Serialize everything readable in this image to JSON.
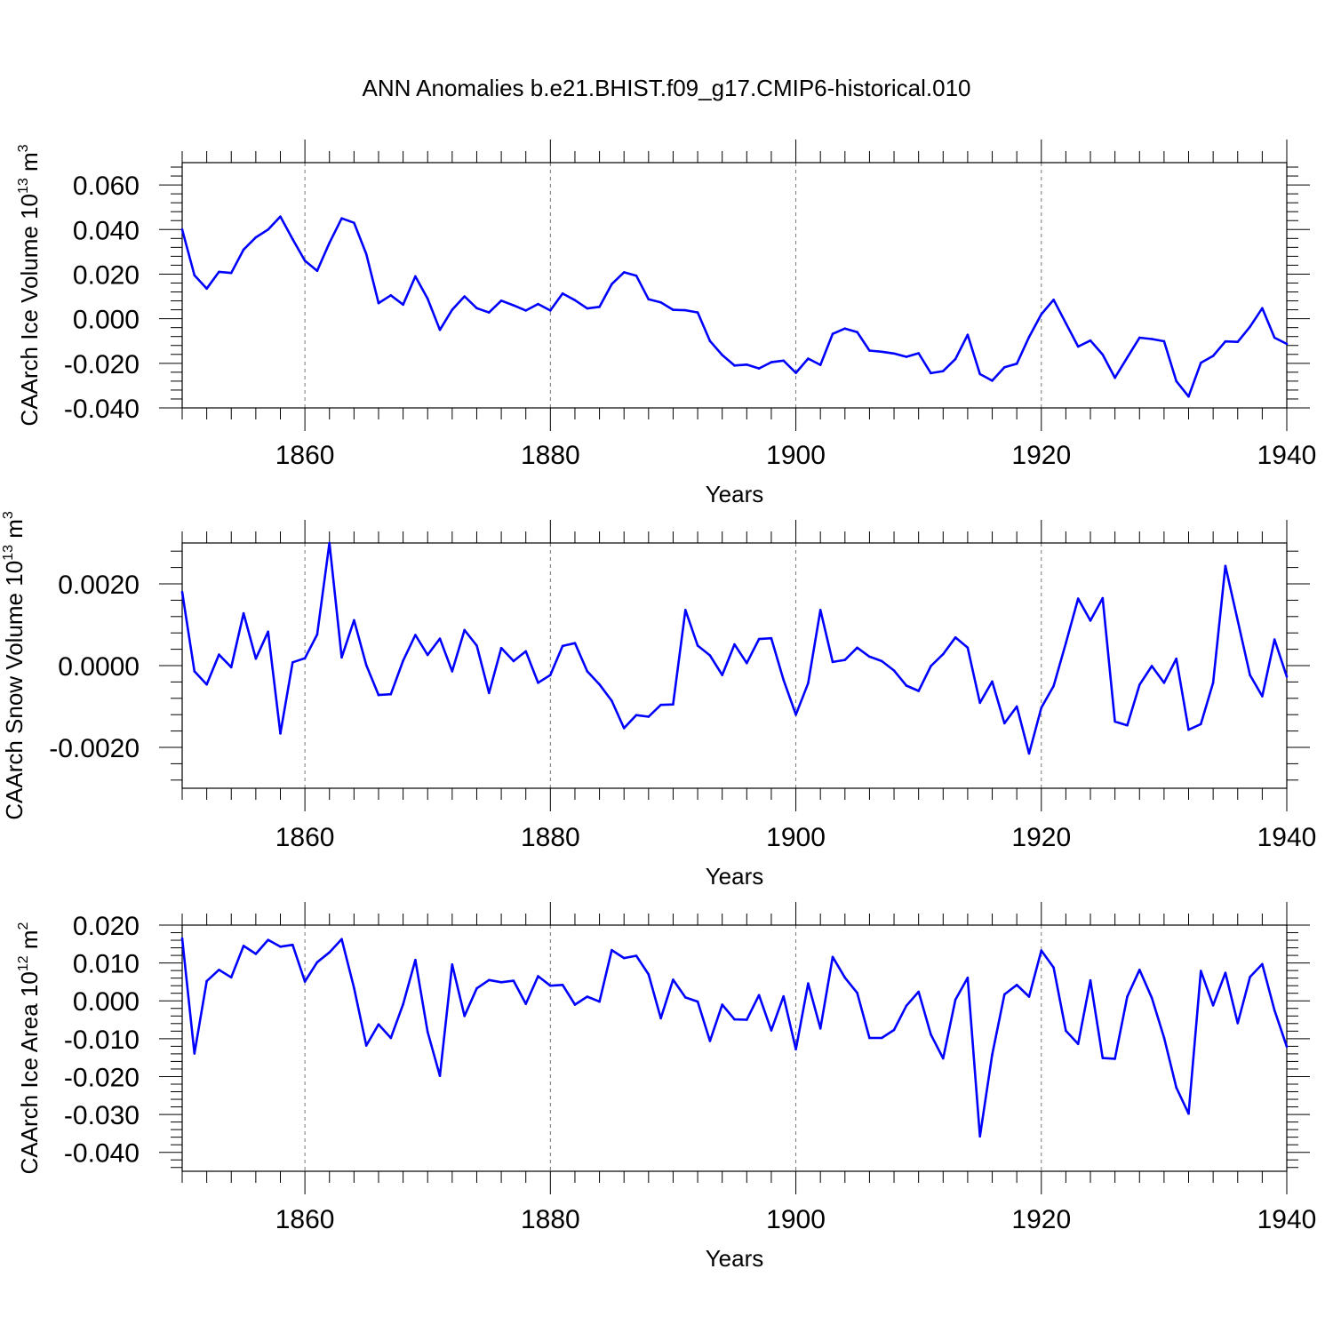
{
  "title": "ANN Anomalies b.e21.BHIST.f09_g17.CMIP6-historical.010",
  "line_color": "#0000ff",
  "chart_data": [
    {
      "type": "line",
      "ylabel": {
        "main": "CAArch Ice Volume 10",
        "exp": "13",
        "unit": " m",
        "unit_exp": "3"
      },
      "xlabel": "Years",
      "xlim": [
        1850,
        1940
      ],
      "ylim": [
        -0.04,
        0.07
      ],
      "y_ticks": [
        -0.04,
        -0.02,
        0.0,
        0.02,
        0.04,
        0.06
      ],
      "y_tick_labels": [
        "-0.040",
        "-0.020",
        "0.000",
        "0.020",
        "0.040",
        "0.060"
      ],
      "x_ticks": [
        1860,
        1880,
        1900,
        1920,
        1940
      ],
      "x_tick_labels": [
        "1860",
        "1880",
        "1900",
        "1920",
        "1940"
      ],
      "grid": "dashed vertical at labeled years",
      "series": [
        {
          "x_start": 1850,
          "values": [
            0.04,
            0.0195,
            0.0135,
            0.021,
            0.0205,
            0.031,
            0.0365,
            0.04,
            0.0458,
            0.0357,
            0.026,
            0.0215,
            0.034,
            0.045,
            0.043,
            0.029,
            0.007,
            0.0105,
            0.0063,
            0.019,
            0.009,
            -0.005,
            0.004,
            0.01,
            0.0047,
            0.0028,
            0.0081,
            0.006,
            0.0037,
            0.0066,
            0.0037,
            0.0113,
            0.0083,
            0.0046,
            0.0053,
            0.0155,
            0.0208,
            0.0193,
            0.0087,
            0.0073,
            0.004,
            0.0038,
            0.0028,
            -0.01,
            -0.0163,
            -0.021,
            -0.0206,
            -0.0223,
            -0.0195,
            -0.0188,
            -0.0243,
            -0.0179,
            -0.0207,
            -0.0068,
            -0.0044,
            -0.006,
            -0.0143,
            -0.0148,
            -0.0156,
            -0.0171,
            -0.0155,
            -0.0244,
            -0.0235,
            -0.0181,
            -0.0072,
            -0.0248,
            -0.0278,
            -0.0218,
            -0.0202,
            -0.0082,
            0.002,
            0.0085,
            -0.002,
            -0.0125,
            -0.0098,
            -0.0161,
            -0.0265,
            -0.0174,
            -0.0085,
            -0.0091,
            -0.0101,
            -0.028,
            -0.0349,
            -0.0198,
            -0.0167,
            -0.0102,
            -0.0104,
            -0.0036,
            0.0047,
            -0.0085,
            -0.0113
          ]
        }
      ]
    },
    {
      "type": "line",
      "ylabel": {
        "main": "CAArch Snow Volume 10",
        "exp": "13",
        "unit": " m",
        "unit_exp": "3"
      },
      "xlabel": "Years",
      "xlim": [
        1850,
        1940
      ],
      "ylim": [
        -0.003,
        0.003
      ],
      "y_ticks": [
        -0.002,
        0.0,
        0.002
      ],
      "y_tick_labels": [
        "-0.0020",
        "0.0000",
        "0.0020"
      ],
      "x_ticks": [
        1860,
        1880,
        1900,
        1920,
        1940
      ],
      "x_tick_labels": [
        "1860",
        "1880",
        "1900",
        "1920",
        "1940"
      ],
      "grid": "dashed vertical at labeled years",
      "series": [
        {
          "x_start": 1850,
          "values": [
            0.0018,
            -0.00014,
            -0.00046,
            0.00027,
            -4e-05,
            0.00128,
            0.00017,
            0.00083,
            -0.00166,
            8e-05,
            0.00018,
            0.00076,
            0.003,
            0.0002,
            0.00111,
            1e-05,
            -0.00072,
            -0.0007,
            0.00012,
            0.00075,
            0.00026,
            0.00066,
            -0.00014,
            0.00087,
            0.00049,
            -0.00067,
            0.00043,
            0.00011,
            0.00035,
            -0.00042,
            -0.00023,
            0.00048,
            0.00055,
            -0.00014,
            -0.00046,
            -0.00086,
            -0.00153,
            -0.00121,
            -0.00125,
            -0.00096,
            -0.00095,
            0.00136,
            0.00049,
            0.00025,
            -0.00023,
            0.00052,
            6e-05,
            0.00065,
            0.00067,
            -0.00035,
            -0.0012,
            -0.00043,
            0.00136,
            9e-05,
            0.00014,
            0.00044,
            0.00022,
            0.00011,
            -0.00012,
            -0.00049,
            -0.00062,
            -1e-05,
            0.00028,
            0.00069,
            0.00044,
            -0.00091,
            -0.00039,
            -0.00141,
            -0.001,
            -0.00215,
            -0.00103,
            -0.0005,
            0.00055,
            0.00164,
            0.0011,
            0.00165,
            -0.00137,
            -0.00146,
            -0.00047,
            -1e-05,
            -0.00042,
            0.00017,
            -0.00157,
            -0.00143,
            -0.00042,
            0.00244,
            0.0011,
            -0.00023,
            -0.00075,
            0.00064,
            -0.00027
          ]
        }
      ]
    },
    {
      "type": "line",
      "ylabel": {
        "main": "CAArch Ice Area 10",
        "exp": "12",
        "unit": " m",
        "unit_exp": "2"
      },
      "xlabel": "Years",
      "xlim": [
        1850,
        1940
      ],
      "ylim": [
        -0.045,
        0.02
      ],
      "y_ticks": [
        -0.04,
        -0.03,
        -0.02,
        -0.01,
        0.0,
        0.01,
        0.02
      ],
      "y_tick_labels": [
        "-0.040",
        "-0.030",
        "-0.020",
        "-0.010",
        "0.000",
        "0.010",
        "0.020"
      ],
      "x_ticks": [
        1860,
        1880,
        1900,
        1920,
        1940
      ],
      "x_tick_labels": [
        "1860",
        "1880",
        "1900",
        "1920",
        "1940"
      ],
      "grid": "dashed vertical at labeled years",
      "series": [
        {
          "x_start": 1850,
          "values": [
            0.0165,
            -0.0139,
            0.0052,
            0.0082,
            0.0062,
            0.0145,
            0.0124,
            0.0161,
            0.0143,
            0.0148,
            0.0051,
            0.0102,
            0.0128,
            0.0163,
            0.0034,
            -0.0118,
            -0.0062,
            -0.0098,
            -0.0009,
            0.0108,
            -0.0082,
            -0.0198,
            0.0096,
            -0.004,
            0.0033,
            0.0055,
            0.0049,
            0.0053,
            -0.0008,
            0.0065,
            0.004,
            0.0042,
            -0.001,
            0.0011,
            -0.0002,
            0.0134,
            0.0113,
            0.0119,
            0.007,
            -0.0046,
            0.0056,
            0.0009,
            -0.0002,
            -0.0106,
            -0.001,
            -0.0049,
            -0.005,
            0.0015,
            -0.0078,
            0.0012,
            -0.0128,
            0.0046,
            -0.0073,
            0.0116,
            0.0061,
            0.0021,
            -0.0098,
            -0.0098,
            -0.0077,
            -0.0013,
            0.0024,
            -0.0089,
            -0.0152,
            0.0003,
            0.0061,
            -0.0358,
            -0.0142,
            0.0017,
            0.0042,
            0.0011,
            0.0133,
            0.0088,
            -0.0079,
            -0.0114,
            0.0054,
            -0.0151,
            -0.0153,
            0.0011,
            0.0082,
            0.0008,
            -0.0097,
            -0.0229,
            -0.0298,
            0.0079,
            -0.0012,
            0.0074,
            -0.0059,
            0.0063,
            0.0097,
            -0.0025,
            -0.0121
          ]
        }
      ]
    }
  ]
}
